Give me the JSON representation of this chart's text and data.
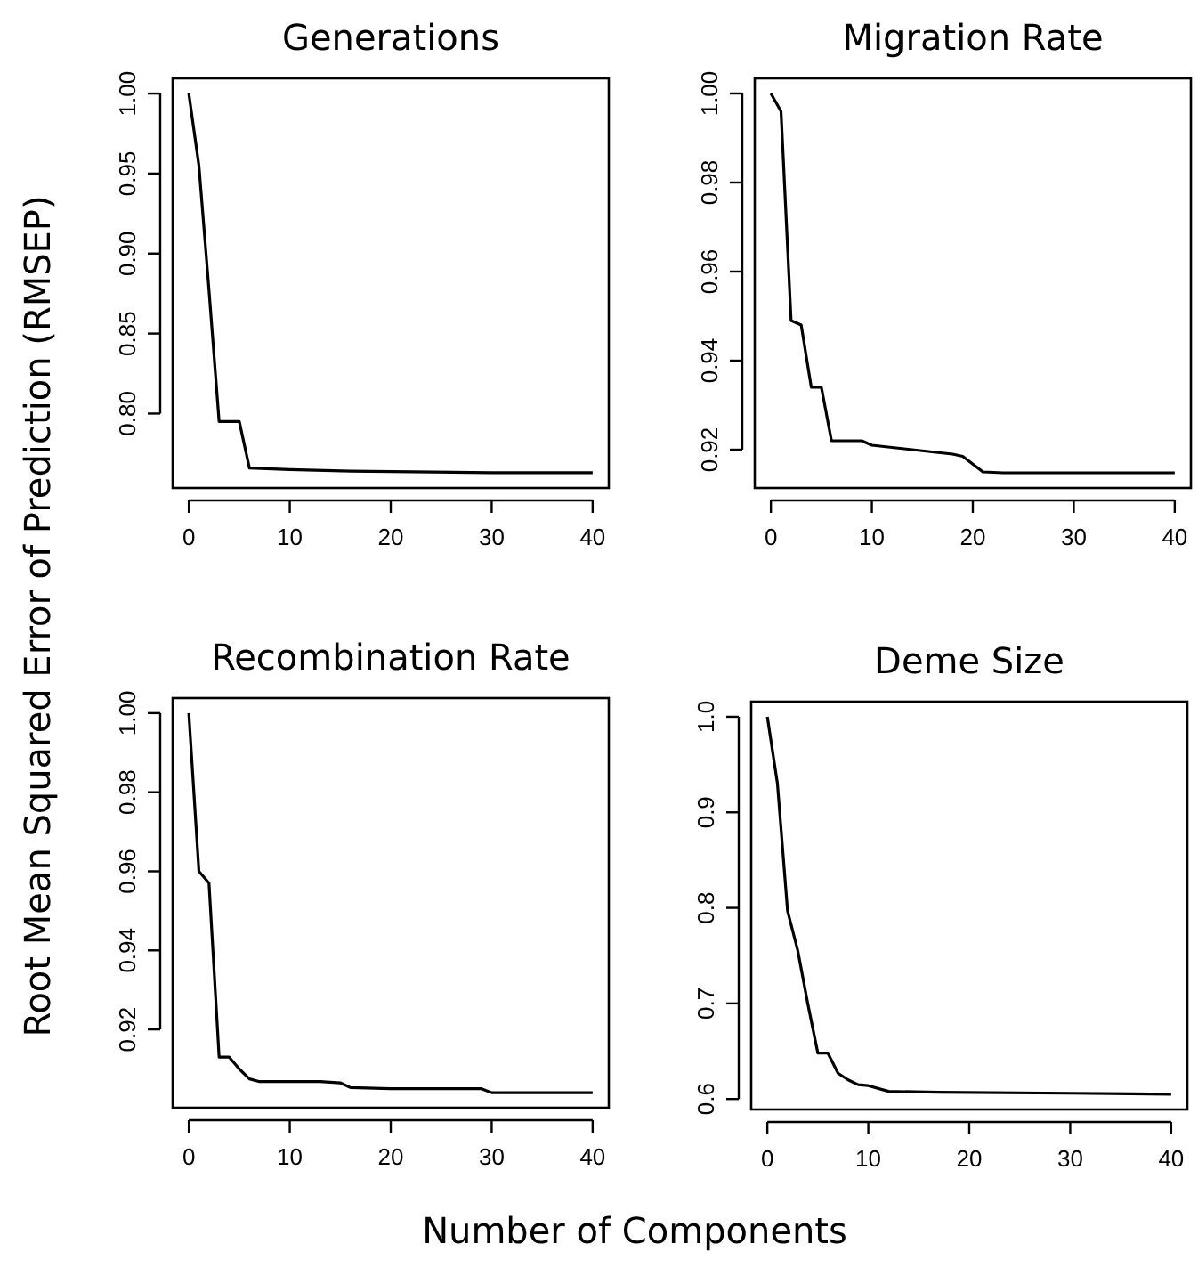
{
  "chart_data": [
    {
      "type": "line",
      "title": "Generations",
      "ylabel": "Root Mean Squared Error of Prediction (RMSEP)",
      "xlim": [
        -1.6,
        41.6
      ],
      "xticks": [
        0,
        10,
        20,
        30,
        40
      ],
      "ylim": [
        0.7535,
        1.0095
      ],
      "yticks": [
        {
          "value": 0.8,
          "label": "0.80"
        },
        {
          "value": 0.85,
          "label": "0.85"
        },
        {
          "value": 0.9,
          "label": "0.90"
        },
        {
          "value": 0.95,
          "label": "0.95"
        },
        {
          "value": 1,
          "label": "1.00"
        }
      ],
      "grid": false,
      "marker": "none",
      "line_style": "solid",
      "series": [
        {
          "color": "#000000",
          "x": [
            0,
            1,
            2,
            3,
            4,
            5,
            6,
            10,
            16,
            30,
            40
          ],
          "values": [
            1.0,
            0.955,
            0.877,
            0.795,
            0.795,
            0.795,
            0.766,
            0.765,
            0.764,
            0.763,
            0.763
          ]
        }
      ]
    },
    {
      "type": "line",
      "title": "Migration Rate",
      "xlim": [
        -1.6,
        41.6
      ],
      "xticks": [
        0,
        10,
        20,
        30,
        40
      ],
      "ylim": [
        0.9114,
        1.0034
      ],
      "yticks": [
        {
          "value": 0.92,
          "label": "0.92"
        },
        {
          "value": 0.94,
          "label": "0.94"
        },
        {
          "value": 0.96,
          "label": "0.96"
        },
        {
          "value": 0.98,
          "label": "0.98"
        },
        {
          "value": 1,
          "label": "1.00"
        }
      ],
      "grid": false,
      "marker": "none",
      "line_style": "solid",
      "series": [
        {
          "color": "#000000",
          "x": [
            0,
            1,
            2,
            3,
            4,
            5,
            6,
            9,
            10,
            14,
            18,
            19,
            21,
            23,
            40
          ],
          "values": [
            1.0,
            0.996,
            0.949,
            0.948,
            0.934,
            0.934,
            0.922,
            0.922,
            0.921,
            0.92,
            0.919,
            0.9185,
            0.915,
            0.9148,
            0.9148
          ]
        }
      ]
    },
    {
      "type": "line",
      "title": "Recombination Rate",
      "xlabel": "Number of Components",
      "xlim": [
        -1.6,
        41.6
      ],
      "xticks": [
        0,
        10,
        20,
        30,
        40
      ],
      "ylim": [
        0.9002,
        1.0038
      ],
      "yticks": [
        {
          "value": 0.92,
          "label": "0.92"
        },
        {
          "value": 0.94,
          "label": "0.94"
        },
        {
          "value": 0.96,
          "label": "0.96"
        },
        {
          "value": 0.98,
          "label": "0.98"
        },
        {
          "value": 1,
          "label": "1.00"
        }
      ],
      "grid": false,
      "marker": "none",
      "line_style": "solid",
      "series": [
        {
          "color": "#000000",
          "x": [
            0,
            1,
            2,
            3,
            4,
            5,
            6,
            7,
            13,
            15,
            16,
            20,
            29,
            30,
            40
          ],
          "values": [
            1.0,
            0.96,
            0.957,
            0.913,
            0.913,
            0.91,
            0.9075,
            0.9068,
            0.9068,
            0.9065,
            0.9053,
            0.905,
            0.905,
            0.904,
            0.904
          ]
        }
      ]
    },
    {
      "type": "line",
      "title": "Deme Size",
      "xlim": [
        -1.6,
        41.6
      ],
      "xticks": [
        0,
        10,
        20,
        30,
        40
      ],
      "ylim": [
        0.589,
        1.0158
      ],
      "yticks": [
        {
          "value": 0.6,
          "label": "0.6"
        },
        {
          "value": 0.7,
          "label": "0.7"
        },
        {
          "value": 0.8,
          "label": "0.8"
        },
        {
          "value": 0.9,
          "label": "0.9"
        },
        {
          "value": 1,
          "label": "1.0"
        }
      ],
      "grid": false,
      "marker": "none",
      "line_style": "solid",
      "series": [
        {
          "color": "#000000",
          "x": [
            0,
            1,
            2,
            3,
            4,
            5,
            6,
            7,
            8,
            9,
            10,
            12,
            17,
            30,
            40
          ],
          "values": [
            1.0,
            0.93,
            0.797,
            0.756,
            0.7,
            0.648,
            0.648,
            0.627,
            0.62,
            0.615,
            0.614,
            0.608,
            0.607,
            0.606,
            0.605
          ]
        }
      ]
    }
  ]
}
